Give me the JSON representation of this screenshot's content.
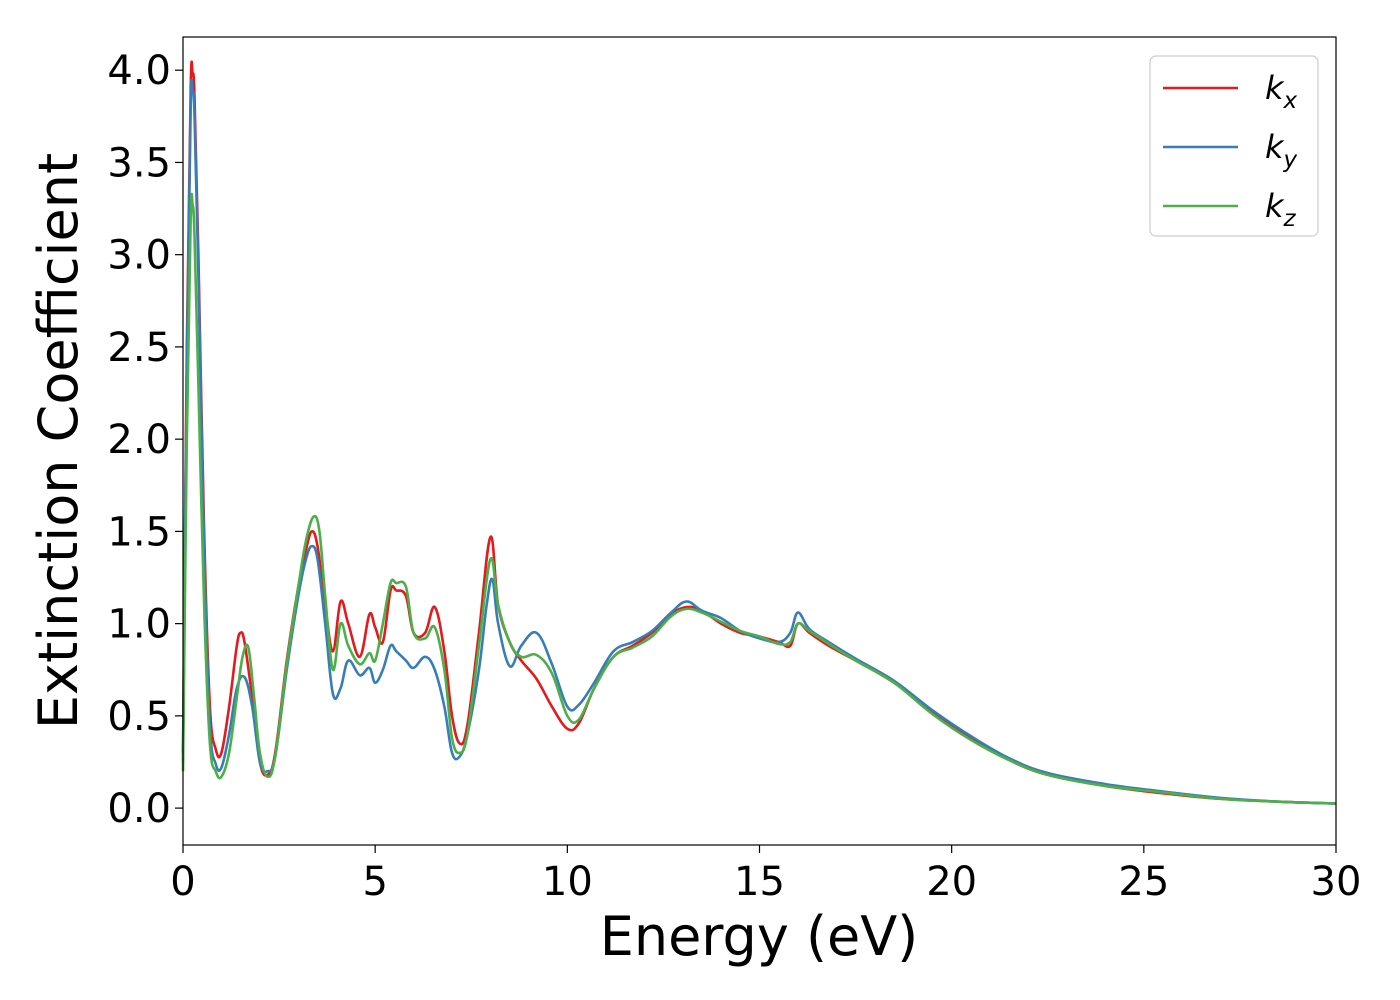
{
  "chart_data": {
    "type": "line",
    "xlabel": "Energy (eV)",
    "ylabel": "Extinction Coefficient",
    "xlim": [
      0,
      30
    ],
    "ylim": [
      -0.2,
      4.18
    ],
    "x_ticks": [
      "0",
      "5",
      "10",
      "15",
      "20",
      "25",
      "30"
    ],
    "y_ticks": [
      "0.0",
      "0.5",
      "1.0",
      "1.5",
      "2.0",
      "2.5",
      "3.0",
      "3.5",
      "4.0"
    ],
    "grid": false,
    "legend_position": "top-right",
    "series": [
      {
        "name": "k",
        "subscript": "x",
        "color": "#e41a1c",
        "x": [
          0,
          0.1,
          0.2,
          0.25,
          0.3,
          0.4,
          0.55,
          0.7,
          0.85,
          1.0,
          1.2,
          1.4,
          1.5,
          1.6,
          1.8,
          2.0,
          2.2,
          2.4,
          2.7,
          3.0,
          3.2,
          3.35,
          3.5,
          3.7,
          3.9,
          4.1,
          4.3,
          4.6,
          4.85,
          5.0,
          5.2,
          5.4,
          5.55,
          5.8,
          6.0,
          6.3,
          6.55,
          6.8,
          7.0,
          7.2,
          7.4,
          7.7,
          8.0,
          8.2,
          8.5,
          8.8,
          9.2,
          9.6,
          10.0,
          10.3,
          10.7,
          11.2,
          11.7,
          12.2,
          12.7,
          13.1,
          13.5,
          14.0,
          14.5,
          15.0,
          15.5,
          15.8,
          16.0,
          16.3,
          16.8,
          17.5,
          18.5,
          19.5,
          20.5,
          21.5,
          22.5,
          24.0,
          25.5,
          27.0,
          28.5,
          30.0
        ],
        "y": [
          0.3,
          2.5,
          3.9,
          3.98,
          3.85,
          3.0,
          1.5,
          0.55,
          0.32,
          0.3,
          0.55,
          0.88,
          0.95,
          0.9,
          0.6,
          0.25,
          0.18,
          0.3,
          0.8,
          1.2,
          1.4,
          1.5,
          1.42,
          1.1,
          0.85,
          1.12,
          1.0,
          0.82,
          1.05,
          0.98,
          0.9,
          1.18,
          1.18,
          1.15,
          0.95,
          0.95,
          1.09,
          0.85,
          0.5,
          0.35,
          0.45,
          0.95,
          1.47,
          1.1,
          0.9,
          0.8,
          0.7,
          0.55,
          0.43,
          0.46,
          0.65,
          0.82,
          0.88,
          0.95,
          1.05,
          1.09,
          1.07,
          1.0,
          0.95,
          0.93,
          0.9,
          0.88,
          1.0,
          0.95,
          0.88,
          0.8,
          0.68,
          0.52,
          0.38,
          0.26,
          0.18,
          0.12,
          0.08,
          0.05,
          0.035,
          0.025
        ]
      },
      {
        "name": "k",
        "subscript": "y",
        "color": "#377eb8",
        "x": [
          0,
          0.1,
          0.2,
          0.25,
          0.3,
          0.4,
          0.55,
          0.7,
          0.85,
          1.0,
          1.2,
          1.4,
          1.6,
          1.8,
          2.0,
          2.2,
          2.4,
          2.7,
          3.0,
          3.2,
          3.35,
          3.5,
          3.7,
          3.9,
          4.1,
          4.3,
          4.6,
          4.85,
          5.0,
          5.2,
          5.4,
          5.55,
          5.8,
          6.0,
          6.3,
          6.55,
          6.8,
          7.0,
          7.2,
          7.4,
          7.7,
          7.9,
          8.05,
          8.2,
          8.5,
          8.8,
          9.2,
          9.6,
          10.0,
          10.3,
          10.7,
          11.2,
          11.7,
          12.2,
          12.7,
          13.1,
          13.5,
          14.0,
          14.5,
          15.0,
          15.5,
          15.8,
          16.0,
          16.3,
          16.8,
          17.5,
          18.5,
          19.5,
          20.5,
          21.5,
          22.5,
          24.0,
          25.5,
          27.0,
          28.5,
          30.0
        ],
        "y": [
          0.25,
          2.4,
          3.8,
          3.88,
          3.75,
          2.9,
          1.4,
          0.45,
          0.24,
          0.22,
          0.4,
          0.65,
          0.71,
          0.55,
          0.25,
          0.2,
          0.28,
          0.75,
          1.15,
          1.35,
          1.42,
          1.35,
          1.0,
          0.62,
          0.65,
          0.8,
          0.72,
          0.76,
          0.68,
          0.75,
          0.88,
          0.85,
          0.8,
          0.76,
          0.82,
          0.75,
          0.55,
          0.3,
          0.28,
          0.4,
          0.75,
          1.1,
          1.24,
          1.0,
          0.77,
          0.88,
          0.95,
          0.78,
          0.55,
          0.56,
          0.68,
          0.85,
          0.9,
          0.96,
          1.06,
          1.12,
          1.07,
          1.03,
          0.96,
          0.92,
          0.9,
          0.95,
          1.06,
          0.97,
          0.9,
          0.81,
          0.69,
          0.53,
          0.39,
          0.27,
          0.19,
          0.13,
          0.09,
          0.055,
          0.035,
          0.025
        ]
      },
      {
        "name": "k",
        "subscript": "z",
        "color": "#4daf4a",
        "x": [
          0,
          0.1,
          0.2,
          0.25,
          0.3,
          0.4,
          0.55,
          0.7,
          0.85,
          1.0,
          1.2,
          1.4,
          1.55,
          1.7,
          1.85,
          2.0,
          2.2,
          2.4,
          2.7,
          3.0,
          3.2,
          3.4,
          3.55,
          3.7,
          3.9,
          4.1,
          4.3,
          4.6,
          4.85,
          5.0,
          5.2,
          5.4,
          5.55,
          5.8,
          6.0,
          6.3,
          6.55,
          6.8,
          7.0,
          7.2,
          7.4,
          7.7,
          8.0,
          8.2,
          8.5,
          8.8,
          9.2,
          9.6,
          10.0,
          10.3,
          10.7,
          11.2,
          11.7,
          12.2,
          12.7,
          13.1,
          13.5,
          14.0,
          14.5,
          15.0,
          15.5,
          15.8,
          16.0,
          16.3,
          16.8,
          17.5,
          18.5,
          19.5,
          20.5,
          21.5,
          22.5,
          24.0,
          25.5,
          27.0,
          28.5,
          30.0
        ],
        "y": [
          0.2,
          2.0,
          3.2,
          3.27,
          3.1,
          2.3,
          1.1,
          0.35,
          0.2,
          0.17,
          0.3,
          0.6,
          0.82,
          0.87,
          0.6,
          0.3,
          0.17,
          0.28,
          0.78,
          1.2,
          1.45,
          1.58,
          1.5,
          1.15,
          0.75,
          1.0,
          0.88,
          0.78,
          0.84,
          0.8,
          1.0,
          1.22,
          1.22,
          1.2,
          0.95,
          0.92,
          0.98,
          0.75,
          0.38,
          0.3,
          0.4,
          0.88,
          1.35,
          1.1,
          0.9,
          0.82,
          0.83,
          0.73,
          0.5,
          0.48,
          0.65,
          0.82,
          0.87,
          0.93,
          1.04,
          1.08,
          1.06,
          1.01,
          0.96,
          0.93,
          0.89,
          0.9,
          1.0,
          0.96,
          0.89,
          0.8,
          0.68,
          0.51,
          0.37,
          0.26,
          0.18,
          0.12,
          0.085,
          0.05,
          0.035,
          0.025
        ]
      }
    ]
  }
}
